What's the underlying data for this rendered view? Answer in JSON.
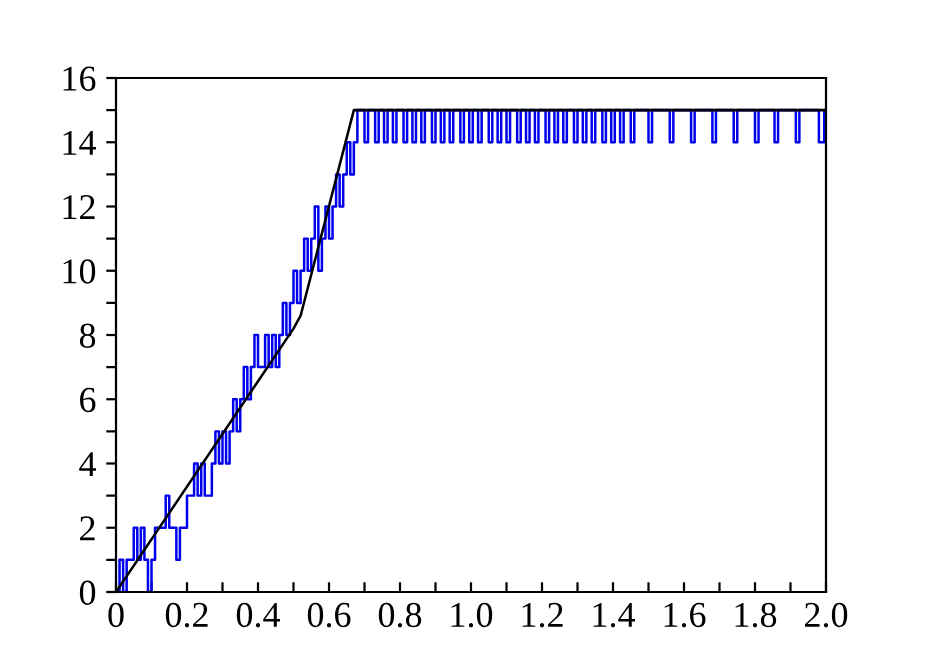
{
  "chart_data": {
    "type": "line",
    "xlim": [
      0,
      2.0
    ],
    "ylim": [
      0,
      16
    ],
    "xticks": [
      {
        "value": 0,
        "label": "0"
      },
      {
        "value": 0.1,
        "label": null
      },
      0.2,
      {
        "value": 0.3,
        "label": null
      },
      0.4,
      {
        "value": 0.5,
        "label": null
      },
      0.6,
      {
        "value": 0.7,
        "label": null
      },
      0.8,
      {
        "value": 0.9,
        "label": null
      },
      {
        "value": 1.0,
        "label": "1.0"
      },
      {
        "value": 1.1,
        "label": null
      },
      1.2,
      {
        "value": 1.3,
        "label": null
      },
      1.4,
      {
        "value": 1.5,
        "label": null
      },
      1.6,
      {
        "value": 1.7,
        "label": null
      },
      1.8,
      {
        "value": 1.9,
        "label": null
      },
      {
        "value": 2.0,
        "label": "2.0"
      }
    ],
    "yticks": [
      0,
      {
        "value": 1,
        "label": null
      },
      2,
      {
        "value": 3,
        "label": null
      },
      4,
      {
        "value": 5,
        "label": null
      },
      6,
      {
        "value": 7,
        "label": null
      },
      8,
      {
        "value": 9,
        "label": null
      },
      10,
      {
        "value": 11,
        "label": null
      },
      12,
      {
        "value": 13,
        "label": null
      },
      14,
      {
        "value": 15,
        "label": null
      },
      16
    ],
    "grid": false,
    "legend": false,
    "marker": "none",
    "series": [
      {
        "type": "step",
        "color": "#0000ee",
        "line_style": "solid",
        "x": [
          0,
          0.01,
          0.02,
          0.03,
          0.05,
          0.06,
          0.07,
          0.08,
          0.09,
          0.1,
          0.11,
          0.14,
          0.15,
          0.17,
          0.18,
          0.2,
          0.22,
          0.23,
          0.24,
          0.25,
          0.27,
          0.28,
          0.29,
          0.3,
          0.31,
          0.32,
          0.33,
          0.34,
          0.35,
          0.36,
          0.37,
          0.38,
          0.39,
          0.4,
          0.42,
          0.43,
          0.44,
          0.45,
          0.46,
          0.47,
          0.48,
          0.49,
          0.5,
          0.51,
          0.52,
          0.53,
          0.54,
          0.55,
          0.56,
          0.57,
          0.58,
          0.59,
          0.6,
          0.61,
          0.62,
          0.63,
          0.64,
          0.65,
          0.66,
          0.67,
          0.68,
          0.7,
          0.71,
          0.73,
          0.74,
          0.755,
          0.765,
          0.78,
          0.79,
          0.81,
          0.82,
          0.835,
          0.845,
          0.86,
          0.87,
          0.89,
          0.9,
          0.915,
          0.925,
          0.94,
          0.95,
          0.97,
          0.98,
          0.995,
          1.005,
          1.02,
          1.03,
          1.05,
          1.06,
          1.075,
          1.085,
          1.1,
          1.11,
          1.13,
          1.14,
          1.155,
          1.165,
          1.18,
          1.19,
          1.21,
          1.22,
          1.235,
          1.245,
          1.26,
          1.27,
          1.29,
          1.3,
          1.315,
          1.325,
          1.34,
          1.35,
          1.37,
          1.38,
          1.395,
          1.405,
          1.42,
          1.43,
          1.45,
          1.46,
          1.5,
          1.51,
          1.56,
          1.57,
          1.62,
          1.63,
          1.68,
          1.69,
          1.74,
          1.75,
          1.8,
          1.81,
          1.855,
          1.865,
          1.915,
          1.925,
          1.98,
          1.995,
          2.0
        ],
        "values": [
          0,
          1,
          0,
          1,
          2,
          1,
          2,
          1,
          0,
          1,
          2,
          3,
          2,
          1,
          2,
          3,
          4,
          3,
          4,
          3,
          4,
          5,
          4,
          5,
          4,
          5,
          6,
          5,
          6,
          7,
          6,
          7,
          8,
          7,
          8,
          7,
          8,
          7,
          8,
          9,
          8,
          9,
          10,
          9,
          10,
          11,
          10,
          11,
          12,
          10,
          11,
          12,
          11,
          12,
          13,
          12,
          13,
          14,
          13,
          14,
          15,
          14,
          15,
          14,
          15,
          14,
          15,
          14,
          15,
          14,
          15,
          14,
          15,
          14,
          15,
          14,
          15,
          14,
          15,
          14,
          15,
          14,
          15,
          14,
          15,
          14,
          15,
          14,
          15,
          14,
          15,
          14,
          15,
          14,
          15,
          14,
          15,
          14,
          15,
          14,
          15,
          14,
          15,
          14,
          15,
          14,
          15,
          14,
          15,
          14,
          15,
          14,
          15,
          14,
          15,
          14,
          15,
          14,
          15,
          14,
          15,
          14,
          15,
          14,
          15,
          14,
          15,
          14,
          15,
          14,
          15,
          14,
          15,
          14,
          15,
          14,
          15,
          15
        ]
      },
      {
        "color": "#000000",
        "line_style": "solid",
        "x": [
          0,
          0.5,
          0.52,
          0.67,
          2.0
        ],
        "values": [
          0,
          8.2,
          8.6,
          15,
          15
        ]
      }
    ]
  }
}
